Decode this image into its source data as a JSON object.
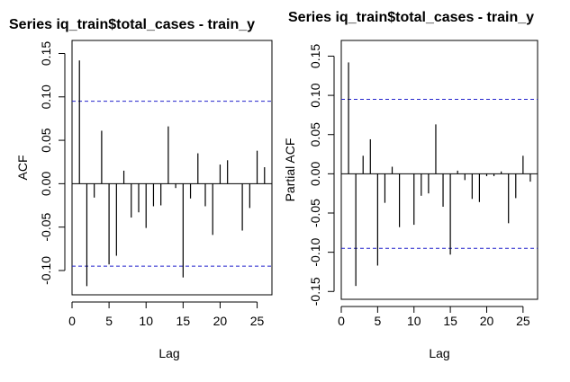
{
  "chart_data": [
    {
      "type": "bar",
      "title": "Series iq_train$total_cases - train_y",
      "xlabel": "Lag",
      "ylabel": "ACF",
      "xlim": [
        0,
        27
      ],
      "ylim": [
        -0.128,
        0.165
      ],
      "xticks": [
        "0",
        "5",
        "10",
        "15",
        "20",
        "25"
      ],
      "yticks": [
        "-0.10",
        "-0.05",
        "0.00",
        "0.05",
        "0.10",
        "0.15"
      ],
      "confidence_bound": 0.095,
      "colors": {
        "bars": "#000000",
        "bounds": "#2222cc"
      },
      "x": [
        1,
        2,
        3,
        4,
        5,
        6,
        7,
        8,
        9,
        10,
        11,
        12,
        13,
        14,
        15,
        16,
        17,
        18,
        19,
        20,
        21,
        22,
        23,
        24,
        25,
        26
      ],
      "values": [
        0.142,
        -0.118,
        -0.016,
        0.061,
        -0.093,
        -0.083,
        0.015,
        -0.039,
        -0.033,
        -0.051,
        -0.026,
        -0.025,
        0.066,
        -0.005,
        -0.108,
        -0.017,
        0.035,
        -0.026,
        -0.059,
        0.022,
        0.027,
        0.0,
        -0.054,
        -0.028,
        0.038,
        0.019
      ]
    },
    {
      "type": "bar",
      "title": "Series  iq_train$total_cases - train_y",
      "xlabel": "Lag",
      "ylabel": "Partial ACF",
      "xlim": [
        0,
        27
      ],
      "ylim": [
        -0.16,
        0.17
      ],
      "xticks": [
        "0",
        "5",
        "10",
        "15",
        "20",
        "25"
      ],
      "yticks": [
        "-0.15",
        "-0.10",
        "-0.05",
        "0.00",
        "0.05",
        "0.10",
        "0.15"
      ],
      "confidence_bound": 0.095,
      "colors": {
        "bars": "#000000",
        "bounds": "#2222cc"
      },
      "x": [
        1,
        2,
        3,
        4,
        5,
        6,
        7,
        8,
        9,
        10,
        11,
        12,
        13,
        14,
        15,
        16,
        17,
        18,
        19,
        20,
        21,
        22,
        23,
        24,
        25,
        26
      ],
      "values": [
        0.142,
        -0.143,
        0.023,
        0.044,
        -0.117,
        -0.037,
        0.009,
        -0.068,
        0.0,
        -0.065,
        -0.028,
        -0.025,
        0.063,
        -0.042,
        -0.103,
        0.004,
        -0.008,
        -0.032,
        -0.036,
        -0.003,
        -0.003,
        0.003,
        -0.063,
        -0.031,
        0.023,
        -0.01
      ]
    }
  ]
}
